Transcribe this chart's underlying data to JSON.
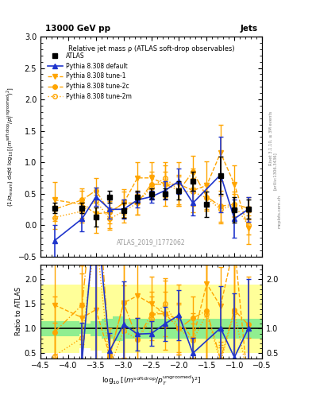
{
  "title_top": "13000 GeV pp",
  "title_right": "Jets",
  "plot_title": "Relative jet mass ρ (ATLAS soft-drop observables)",
  "watermark": "ATLAS_2019_I1772062",
  "rivet_text": "Rivet 3.1.10, ≥ 3M events",
  "inspire_text": "[arXiv:1306.3436]",
  "mcplots_text": "mcplots.cern.ch",
  "ratio_ylabel": "Ratio to ATLAS",
  "xlim": [
    -4.5,
    -0.5
  ],
  "ylim": [
    -0.5,
    3.0
  ],
  "ratio_ylim": [
    0.4,
    2.3
  ],
  "x_data": [
    -4.25,
    -3.75,
    -3.5,
    -3.25,
    -3.0,
    -2.75,
    -2.5,
    -2.25,
    -2.0,
    -1.75,
    -1.5,
    -1.25,
    -1.0,
    -0.75
  ],
  "atlas_y": [
    0.27,
    0.27,
    0.13,
    0.45,
    0.23,
    0.45,
    0.5,
    0.5,
    0.55,
    0.7,
    0.33,
    0.79,
    0.24,
    0.25
  ],
  "atlas_yerr": [
    0.08,
    0.08,
    0.15,
    0.1,
    0.12,
    0.1,
    0.08,
    0.08,
    0.15,
    0.15,
    0.2,
    0.3,
    0.2,
    0.15
  ],
  "pythia_default_y": [
    -0.25,
    0.1,
    0.45,
    0.25,
    0.25,
    0.4,
    0.45,
    0.55,
    0.7,
    0.35,
    0.8,
    0.1,
    0.25
  ],
  "pythia_default_yerr": [
    0.25,
    0.2,
    0.15,
    0.15,
    0.15,
    0.12,
    0.1,
    0.15,
    0.2,
    0.2,
    0.6,
    0.3,
    0.2
  ],
  "pythia_default_x": [
    -4.25,
    -3.75,
    -3.5,
    -3.25,
    -3.0,
    -2.75,
    -2.5,
    -2.25,
    -2.0,
    -1.75,
    -1.25,
    -1.0,
    -0.75
  ],
  "tune1_y": [
    0.4,
    0.33,
    0.18,
    0.2,
    0.35,
    0.75,
    0.75,
    0.65,
    0.65,
    0.55,
    0.63,
    1.15,
    0.65,
    -0.05
  ],
  "tune1_x": [
    -4.25,
    -3.75,
    -3.5,
    -3.25,
    -3.0,
    -2.75,
    -2.5,
    -2.25,
    -2.0,
    -1.75,
    -1.5,
    -1.25,
    -1.0,
    -0.75
  ],
  "tune1_yerr": [
    0.28,
    0.22,
    0.3,
    0.25,
    0.22,
    0.25,
    0.25,
    0.35,
    0.35,
    0.35,
    0.38,
    0.45,
    0.3,
    0.25
  ],
  "tune2c_y": [
    0.25,
    0.4,
    0.55,
    0.2,
    0.35,
    0.35,
    0.65,
    0.65,
    0.55,
    0.85,
    0.45,
    0.3,
    0.33,
    0.27
  ],
  "tune2c_x": [
    -4.25,
    -3.75,
    -3.5,
    -3.25,
    -3.0,
    -2.75,
    -2.5,
    -2.25,
    -2.0,
    -1.75,
    -1.5,
    -1.25,
    -1.0,
    -0.75
  ],
  "tune2c_yerr": [
    0.18,
    0.18,
    0.2,
    0.18,
    0.18,
    0.18,
    0.2,
    0.2,
    0.25,
    0.25,
    0.22,
    0.25,
    0.2,
    0.18
  ],
  "tune2m_y": [
    0.12,
    0.22,
    0.38,
    0.1,
    0.22,
    0.35,
    0.6,
    0.75,
    0.55,
    0.53,
    0.43,
    0.25,
    0.32,
    0.0
  ],
  "tune2m_x": [
    -4.25,
    -3.75,
    -3.5,
    -3.25,
    -3.0,
    -2.75,
    -2.5,
    -2.25,
    -2.0,
    -1.75,
    -1.5,
    -1.25,
    -1.0,
    -0.75
  ],
  "tune2m_yerr": [
    0.18,
    0.18,
    0.22,
    0.18,
    0.18,
    0.18,
    0.2,
    0.2,
    0.22,
    0.22,
    0.2,
    0.22,
    0.18,
    0.15
  ],
  "band_x_edges": [
    -4.5,
    -4.1,
    -3.8,
    -3.6,
    -3.4,
    -3.2,
    -3.0,
    -2.8,
    -2.6,
    -2.4,
    -2.2,
    -2.0,
    -1.8,
    -1.6,
    -1.4,
    -1.2,
    -1.0,
    -0.5
  ],
  "green_band_low": [
    0.85,
    0.85,
    0.9,
    0.85,
    0.8,
    0.75,
    0.8,
    0.8,
    0.8,
    0.8,
    0.8,
    0.8,
    0.8,
    0.8,
    0.8,
    0.8,
    0.8,
    0.8
  ],
  "green_band_high": [
    1.15,
    1.15,
    1.1,
    1.15,
    1.2,
    1.25,
    1.2,
    1.2,
    1.2,
    1.2,
    1.2,
    1.2,
    1.2,
    1.2,
    1.2,
    1.2,
    1.2,
    1.2
  ],
  "yellow_band_low": [
    0.5,
    0.5,
    0.6,
    0.55,
    0.5,
    0.5,
    0.5,
    0.5,
    0.5,
    0.5,
    0.5,
    0.5,
    0.5,
    0.5,
    0.5,
    0.5,
    0.5,
    0.5
  ],
  "yellow_band_high": [
    1.9,
    1.9,
    1.9,
    1.85,
    1.9,
    1.9,
    1.9,
    1.9,
    1.9,
    1.9,
    1.9,
    1.9,
    1.9,
    1.9,
    1.9,
    1.9,
    1.9,
    1.9
  ],
  "color_blue": "#1f35cc",
  "color_orange": "#FFA500",
  "color_green_band": "#90EE90",
  "color_yellow_band": "#FFFF99"
}
